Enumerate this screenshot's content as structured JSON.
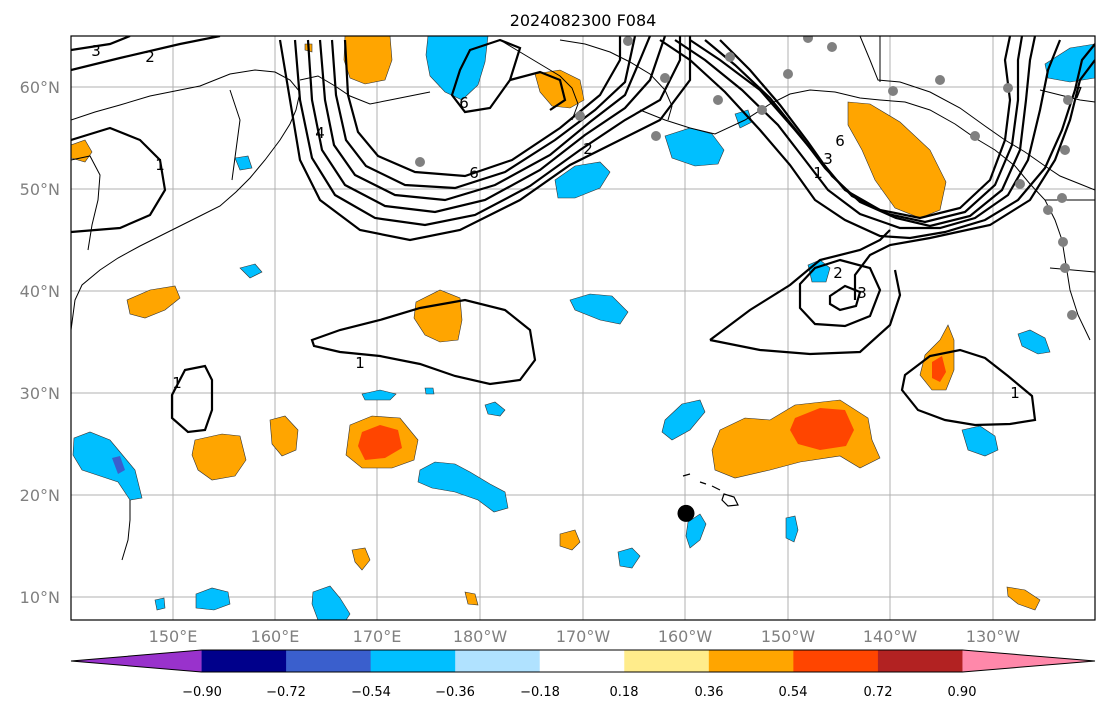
{
  "map": {
    "title": "2024082300 F084",
    "lat_labels": [
      "60°N",
      "50°N",
      "40°N",
      "30°N",
      "20°N",
      "10°N"
    ],
    "lon_labels": [
      "150°E",
      "160°E",
      "170°E",
      "180°W",
      "170°W",
      "160°W",
      "150°W",
      "140°W",
      "130°W"
    ],
    "contour_labels": [
      "1",
      "1",
      "1",
      "1",
      "1",
      "2",
      "2",
      "2",
      "3",
      "3",
      "3",
      "4",
      "6",
      "6",
      "6",
      "7"
    ],
    "marker": {
      "lon": -160.0,
      "lat": 18.2,
      "color": "#000000"
    },
    "station_marker_color": "#808080",
    "colorbar": {
      "ticks": [
        "−0.90",
        "−0.72",
        "−0.54",
        "−0.36",
        "−0.18",
        "0.18",
        "0.36",
        "0.54",
        "0.72",
        "0.90"
      ],
      "colors": [
        "#9932cc",
        "#00008b",
        "#3a5fcd",
        "#00bfff",
        "#b0e2ff",
        "#ffffff",
        "#ffec8b",
        "#ffa500",
        "#ff4500",
        "#b22222",
        "#ff88aa"
      ]
    }
  }
}
